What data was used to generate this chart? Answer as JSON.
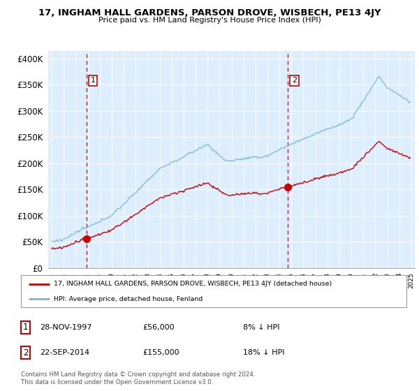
{
  "title": "17, INGHAM HALL GARDENS, PARSON DROVE, WISBECH, PE13 4JY",
  "subtitle": "Price paid vs. HM Land Registry's House Price Index (HPI)",
  "ylabel_ticks": [
    "£0",
    "£50K",
    "£100K",
    "£150K",
    "£200K",
    "£250K",
    "£300K",
    "£350K",
    "£400K"
  ],
  "ytick_vals": [
    0,
    50000,
    100000,
    150000,
    200000,
    250000,
    300000,
    350000,
    400000
  ],
  "ylim": [
    0,
    415000
  ],
  "xlim_start": 1994.7,
  "xlim_end": 2025.3,
  "transaction1": {
    "date": "28-NOV-1997",
    "x": 1997.92,
    "price": 56000,
    "label": "1",
    "pct": "8% ↓ HPI"
  },
  "transaction2": {
    "date": "22-SEP-2014",
    "x": 2014.72,
    "price": 155000,
    "label": "2",
    "pct": "18% ↓ HPI"
  },
  "legend_line1": "17, INGHAM HALL GARDENS, PARSON DROVE, WISBECH, PE13 4JY (detached house)",
  "legend_line2": "HPI: Average price, detached house, Fenland",
  "footer1": "Contains HM Land Registry data © Crown copyright and database right 2024.",
  "footer2": "This data is licensed under the Open Government Licence v3.0.",
  "hpi_color": "#7ab8d9",
  "price_color": "#cc0000",
  "dashed_color": "#cc0000",
  "background_color": "#ffffff",
  "plot_bg_color": "#ddeeff",
  "grid_color": "#ffffff"
}
